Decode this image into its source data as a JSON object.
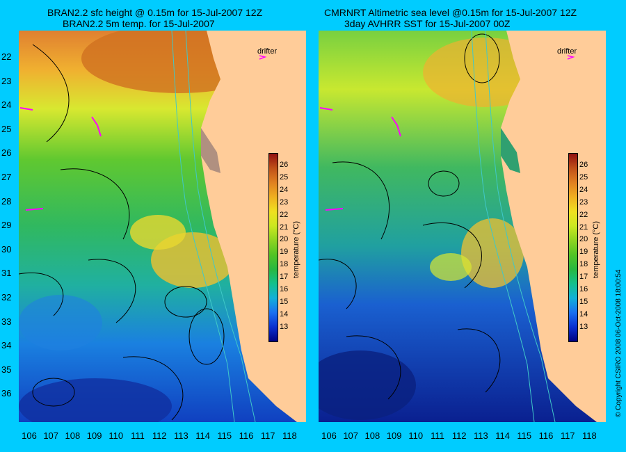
{
  "left_panel": {
    "title_line1": "BRAN2.2 sfc height @ 0.15m for 15-Jul-2007 12Z",
    "title_line2": "BRAN2.2 5m temp. for 15-Jul-2007",
    "drifter_label": "drifter"
  },
  "right_panel": {
    "title_line1": "CMRNRT Altimetric sea level  @0.15m  for 15-Jul-2007 12Z",
    "title_line2": "3day AVHRR SST for 15-Jul-2007 00Z",
    "drifter_label": "drifter"
  },
  "latitude_labels": [
    "22",
    "23",
    "24",
    "25",
    "26",
    "27",
    "28",
    "29",
    "30",
    "31",
    "32",
    "33",
    "34",
    "35",
    "36"
  ],
  "longitude_labels": [
    "106",
    "107",
    "108",
    "109",
    "110",
    "111",
    "112",
    "113",
    "114",
    "115",
    "116",
    "117",
    "118"
  ],
  "colorbar": {
    "title": "temperature (°C)",
    "ticks": [
      "26",
      "25",
      "24",
      "23",
      "22",
      "21",
      "20",
      "19",
      "18",
      "17",
      "16",
      "15",
      "14",
      "13"
    ],
    "colors": [
      "#000080",
      "#0a2fd0",
      "#1a70f0",
      "#12b0d8",
      "#14c08c",
      "#28b840",
      "#52c424",
      "#8ed420",
      "#cce820",
      "#f0e020",
      "#f0b020",
      "#e08020",
      "#c05018",
      "#901010"
    ]
  },
  "copyright": "© Copyright CSIRO 2008   06-Oct-2008 18:00:54",
  "colors": {
    "background": "#00ccff",
    "land": "#ffcc99",
    "contour": "#000000",
    "isobath": "#40c8c8",
    "drifter": "#ff00ff"
  }
}
